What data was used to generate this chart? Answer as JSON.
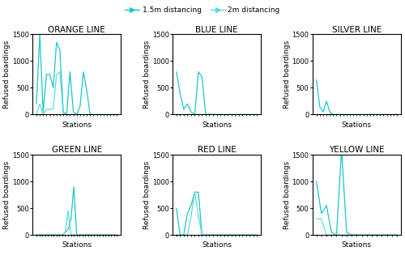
{
  "subplots": [
    {
      "title": "ORANGE LINE",
      "data_15m": [
        200,
        1500,
        50,
        750,
        750,
        500,
        1350,
        1200,
        50,
        0,
        800,
        50,
        0,
        150,
        800,
        450,
        0,
        0,
        0,
        0,
        0,
        0,
        0,
        0,
        0
      ],
      "data_2m": [
        0,
        200,
        0,
        100,
        100,
        100,
        750,
        800,
        0,
        0,
        0,
        0,
        0,
        0,
        0,
        0,
        0,
        0,
        0,
        0,
        0,
        0,
        0,
        0,
        0
      ]
    },
    {
      "title": "BLUE LINE",
      "data_15m": [
        800,
        400,
        100,
        200,
        50,
        0,
        800,
        700,
        0,
        0,
        0,
        0,
        0,
        0,
        0,
        0,
        0,
        0,
        0,
        0,
        0,
        0,
        0
      ],
      "data_2m": [
        0,
        0,
        0,
        0,
        0,
        0,
        0,
        0,
        0,
        0,
        0,
        0,
        0,
        0,
        0,
        0,
        0,
        0,
        0,
        0,
        0,
        0,
        0
      ]
    },
    {
      "title": "SILVER LINE",
      "data_15m": [
        650,
        150,
        50,
        250,
        50,
        0,
        0,
        0,
        0,
        0,
        0,
        0,
        0,
        0,
        0,
        0,
        0,
        0,
        0,
        0,
        0,
        0,
        0,
        0,
        0
      ],
      "data_2m": [
        0,
        0,
        0,
        0,
        0,
        0,
        0,
        0,
        0,
        0,
        0,
        0,
        0,
        0,
        0,
        0,
        0,
        0,
        0,
        0,
        0,
        0,
        0,
        0,
        0
      ]
    },
    {
      "title": "GREEN LINE",
      "data_15m": [
        0,
        0,
        0,
        0,
        0,
        0,
        0,
        0,
        0,
        0,
        50,
        100,
        300,
        900,
        0,
        0,
        0,
        0,
        0,
        0,
        0,
        0,
        0,
        0,
        0,
        0,
        0,
        0,
        0
      ],
      "data_2m": [
        0,
        0,
        0,
        0,
        0,
        0,
        0,
        0,
        0,
        0,
        50,
        450,
        0,
        0,
        0,
        0,
        0,
        0,
        0,
        0,
        0,
        0,
        0,
        0,
        0,
        0,
        0,
        0,
        0
      ]
    },
    {
      "title": "RED LINE",
      "data_15m": [
        500,
        0,
        0,
        400,
        550,
        800,
        800,
        0,
        0,
        0,
        0,
        0,
        0,
        0,
        0,
        0,
        0,
        0,
        0,
        0,
        0,
        0,
        0
      ],
      "data_2m": [
        0,
        0,
        0,
        0,
        350,
        800,
        350,
        0,
        0,
        0,
        0,
        0,
        0,
        0,
        0,
        0,
        0,
        0,
        0,
        0,
        0,
        0,
        0
      ]
    },
    {
      "title": "YELLOW LINE",
      "data_15m": [
        1000,
        400,
        550,
        50,
        0,
        1600,
        50,
        0,
        0,
        0,
        0,
        0,
        0,
        0,
        0,
        0,
        0
      ],
      "data_2m": [
        300,
        300,
        0,
        0,
        0,
        0,
        0,
        0,
        0,
        0,
        0,
        0,
        0,
        0,
        0,
        0,
        0
      ]
    }
  ],
  "color_15m": "#1CC6C6",
  "color_2m": "#5DDADA",
  "ylim": [
    0,
    1500
  ],
  "yticks": [
    0,
    500,
    1000,
    1500
  ],
  "xlabel": "Stations",
  "ylabel": "Refused boardings",
  "legend_label_15m": "1.5m distancing",
  "legend_label_2m": "2m distancing",
  "title_fontsize": 7.5,
  "axis_fontsize": 6.5,
  "tick_fontsize": 6,
  "legend_fontsize": 6.5
}
